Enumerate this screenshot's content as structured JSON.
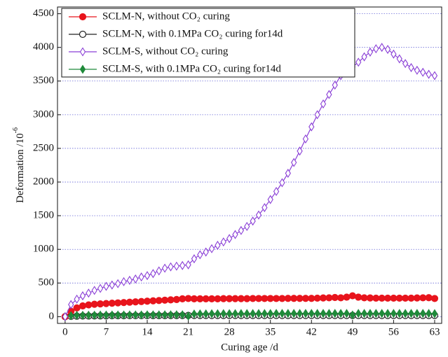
{
  "chart_data": {
    "type": "line",
    "x_label": "Curing age /d",
    "y_label": {
      "text": "Deformation /10",
      "sup": "-6"
    },
    "x": [
      0,
      1,
      2,
      3,
      4,
      5,
      6,
      7,
      8,
      9,
      10,
      11,
      12,
      13,
      14,
      15,
      16,
      17,
      18,
      19,
      20,
      21,
      22,
      23,
      24,
      25,
      26,
      27,
      28,
      29,
      30,
      31,
      32,
      33,
      34,
      35,
      36,
      37,
      38,
      39,
      40,
      41,
      42,
      43,
      44,
      45,
      46,
      47,
      48,
      49,
      50,
      51,
      52,
      53,
      54,
      55,
      56,
      57,
      58,
      59,
      60,
      61,
      62,
      63
    ],
    "xlim": [
      -1.3,
      64.2
    ],
    "xticks": [
      0,
      7,
      14,
      21,
      28,
      35,
      42,
      49,
      56,
      63
    ],
    "ylim": [
      -100,
      4600
    ],
    "yticks": [
      0,
      500,
      1000,
      1500,
      2000,
      2500,
      3000,
      3500,
      4000,
      4500
    ],
    "grid": true,
    "legend": "upper left",
    "series": [
      {
        "name": "SCLM-N, without CO₂ curing",
        "color": "#e8141c",
        "marker": "circle",
        "filled": true,
        "values": [
          0,
          80,
          130,
          160,
          175,
          185,
          190,
          195,
          200,
          205,
          210,
          215,
          220,
          225,
          230,
          235,
          240,
          245,
          250,
          255,
          265,
          270,
          265,
          265,
          265,
          265,
          265,
          268,
          268,
          268,
          268,
          268,
          270,
          270,
          270,
          270,
          270,
          270,
          272,
          272,
          272,
          272,
          272,
          275,
          278,
          280,
          285,
          280,
          290,
          310,
          290,
          280,
          278,
          275,
          275,
          275,
          275,
          275,
          275,
          275,
          278,
          280,
          282,
          270
        ]
      },
      {
        "name": "SCLM-N, with 0.1MPa CO₂ curing for14d",
        "color": "#222222",
        "marker": "circle",
        "filled": false,
        "values": [
          0,
          5,
          8,
          10,
          10,
          12,
          12,
          12,
          14,
          14,
          14,
          15,
          15,
          15,
          15,
          16,
          16,
          16,
          17,
          17,
          17,
          18,
          18,
          18,
          18,
          18,
          18,
          18,
          18,
          18,
          18,
          18,
          18,
          18,
          18,
          18,
          18,
          18,
          18,
          18,
          18,
          18,
          18,
          18,
          18,
          18,
          18,
          18,
          18,
          18,
          18,
          18,
          18,
          18,
          18,
          18,
          18,
          18,
          18,
          18,
          18,
          18,
          18,
          18
        ]
      },
      {
        "name": "SCLM-S,  without CO₂ curing",
        "color": "#8a3fd6",
        "marker": "diamond",
        "filled": false,
        "values": [
          0,
          180,
          260,
          310,
          350,
          390,
          420,
          450,
          470,
          490,
          520,
          540,
          560,
          590,
          610,
          640,
          680,
          720,
          740,
          750,
          760,
          770,
          860,
          920,
          960,
          1010,
          1060,
          1110,
          1160,
          1220,
          1280,
          1340,
          1420,
          1510,
          1620,
          1740,
          1860,
          1990,
          2130,
          2290,
          2460,
          2640,
          2820,
          3000,
          3160,
          3300,
          3440,
          3580,
          3660,
          3710,
          3780,
          3860,
          3930,
          3980,
          4000,
          3970,
          3900,
          3830,
          3760,
          3700,
          3660,
          3630,
          3600,
          3580
        ]
      },
      {
        "name": "SCLM-S, with 0.1MPa CO₂ curing for14d",
        "color": "#1f8a3a",
        "marker": "diamond",
        "filled": true,
        "values": [
          0,
          15,
          20,
          20,
          22,
          22,
          24,
          24,
          25,
          25,
          25,
          26,
          26,
          26,
          27,
          27,
          27,
          28,
          28,
          28,
          28,
          10,
          40,
          42,
          42,
          44,
          44,
          45,
          45,
          45,
          46,
          46,
          46,
          47,
          47,
          47,
          48,
          48,
          48,
          48,
          48,
          48,
          48,
          48,
          48,
          48,
          48,
          48,
          48,
          25,
          48,
          48,
          48,
          48,
          48,
          48,
          48,
          48,
          48,
          48,
          48,
          48,
          48,
          45
        ]
      }
    ]
  }
}
